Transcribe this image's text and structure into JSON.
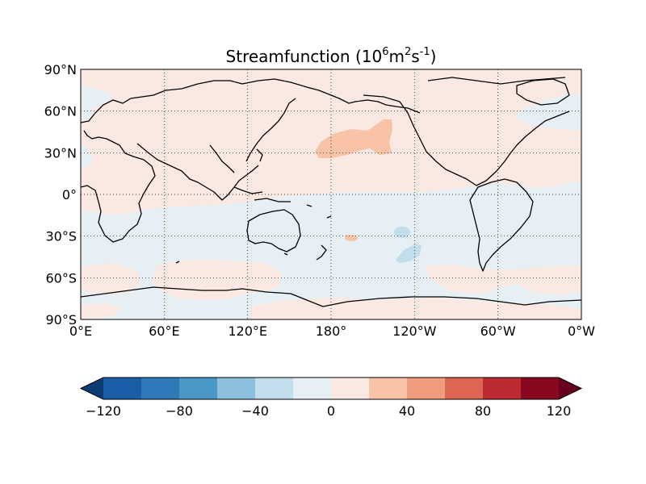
{
  "figure": {
    "title_main": "Streamfunction (10",
    "title_exp1": "6",
    "title_mid1": "m",
    "title_exp2": "2",
    "title_mid2": "s",
    "title_exp3": "-1",
    "title_end": ")"
  },
  "map": {
    "lat_ticks": [
      "90°N",
      "60°N",
      "30°N",
      "0°",
      "30°S",
      "60°S",
      "90°S"
    ],
    "lon_ticks": [
      "0°E",
      "60°E",
      "120°E",
      "180°",
      "120°W",
      "60°W",
      "0°W"
    ],
    "grid": true,
    "projection": "equirectangular",
    "lon_range": [
      0,
      360
    ],
    "lat_range": [
      -90,
      90
    ]
  },
  "colorbar": {
    "ticks": [
      "−120",
      "−80",
      "−40",
      "0",
      "40",
      "80",
      "120"
    ],
    "levels": [
      -120,
      -100,
      -80,
      -60,
      -40,
      -20,
      0,
      20,
      40,
      60,
      80,
      100,
      120
    ],
    "colors": [
      "#0d3c73",
      "#1b5ea8",
      "#2e7ab8",
      "#4a97c8",
      "#8cc0dd",
      "#c2ddec",
      "#e6eff4",
      "#f9e9e2",
      "#f9c3a8",
      "#ef9d7e",
      "#dc6553",
      "#bc2a32",
      "#88091f",
      "#67001f"
    ],
    "extend": "both"
  },
  "colors": {
    "positive_weak": "#f9e9e2",
    "negative_weak": "#e6eff4",
    "positive_mid": "#f9c3a8",
    "negative_mid": "#c2ddec"
  }
}
